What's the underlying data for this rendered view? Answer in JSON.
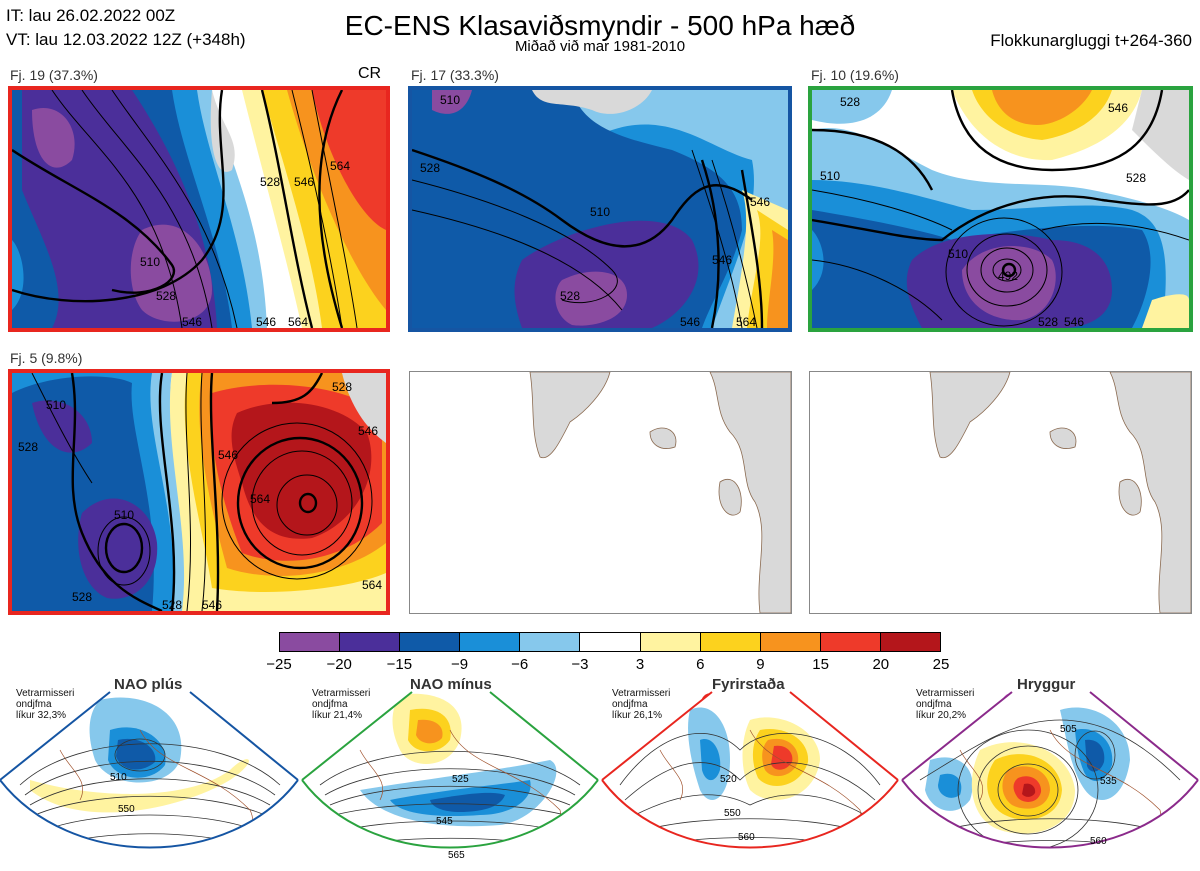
{
  "header": {
    "it_line": "IT: lau 26.02.2022 00Z",
    "vt_line": "VT: lau 12.03.2022 12Z  (+348h)",
    "title": "EC-ENS Klasaviðsmyndir - 500 hPa hæð",
    "subtitle": "Miðað við mar 1981-2010",
    "window": "Flokkunargluggi t+264-360"
  },
  "clusters": [
    {
      "label": "Fj. 19 (37.3%)",
      "tag": "CR",
      "frame_color": "#e8261f",
      "contours": [
        "510",
        "528",
        "528",
        "546",
        "546",
        "564",
        "564",
        "546"
      ]
    },
    {
      "label": "Fj. 17 (33.3%)",
      "tag": "",
      "frame_color": "#1555a3",
      "contours": [
        "528",
        "510",
        "510",
        "528",
        "546",
        "546",
        "564",
        "546"
      ]
    },
    {
      "label": "Fj. 10 (19.6%)",
      "tag": "",
      "frame_color": "#2aa33f",
      "contours": [
        "510",
        "528",
        "492",
        "510",
        "528",
        "546",
        "528",
        "546"
      ]
    },
    {
      "label": "Fj. 5 (9.8%)",
      "tag": "",
      "frame_color": "#e8261f",
      "contours": [
        "510",
        "528",
        "510",
        "528",
        "546",
        "546",
        "564",
        "528",
        "564",
        "528",
        "546"
      ]
    }
  ],
  "colorbar": {
    "ticks": [
      "−25",
      "−20",
      "−15",
      "−9",
      "−6",
      "−3",
      "3",
      "6",
      "9",
      "15",
      "20",
      "25"
    ],
    "colors": [
      "#8a4ba0",
      "#4b2f9a",
      "#0f5aa8",
      "#1a8fd8",
      "#86c8ec",
      "#ffffff",
      "#fff3a0",
      "#fcd21e",
      "#f7931e",
      "#ee3a2a",
      "#b4161b"
    ]
  },
  "regimes": [
    {
      "name": "NAO plús",
      "info": [
        "Vetrarmisseri",
        "ondjfma",
        "líkur 32,3%"
      ],
      "color": "#1555a3",
      "contours": [
        "510",
        "550"
      ]
    },
    {
      "name": "NAO mínus",
      "info": [
        "Vetrarmisseri",
        "ondjfma",
        "líkur 21,4%"
      ],
      "color": "#2aa33f",
      "contours": [
        "525",
        "545",
        "565"
      ]
    },
    {
      "name": "Fyrirstaða",
      "info": [
        "Vetrarmisseri",
        "ondjfma",
        "líkur 26,1%"
      ],
      "color": "#e8261f",
      "contours": [
        "520",
        "550",
        "560"
      ]
    },
    {
      "name": "Hryggur",
      "info": [
        "Vetrarmisseri",
        "ondjfma",
        "líkur 20,2%"
      ],
      "color": "#e070e0",
      "frame_color": "#8b2a8b",
      "contours": [
        "505",
        "535",
        "560"
      ]
    }
  ]
}
